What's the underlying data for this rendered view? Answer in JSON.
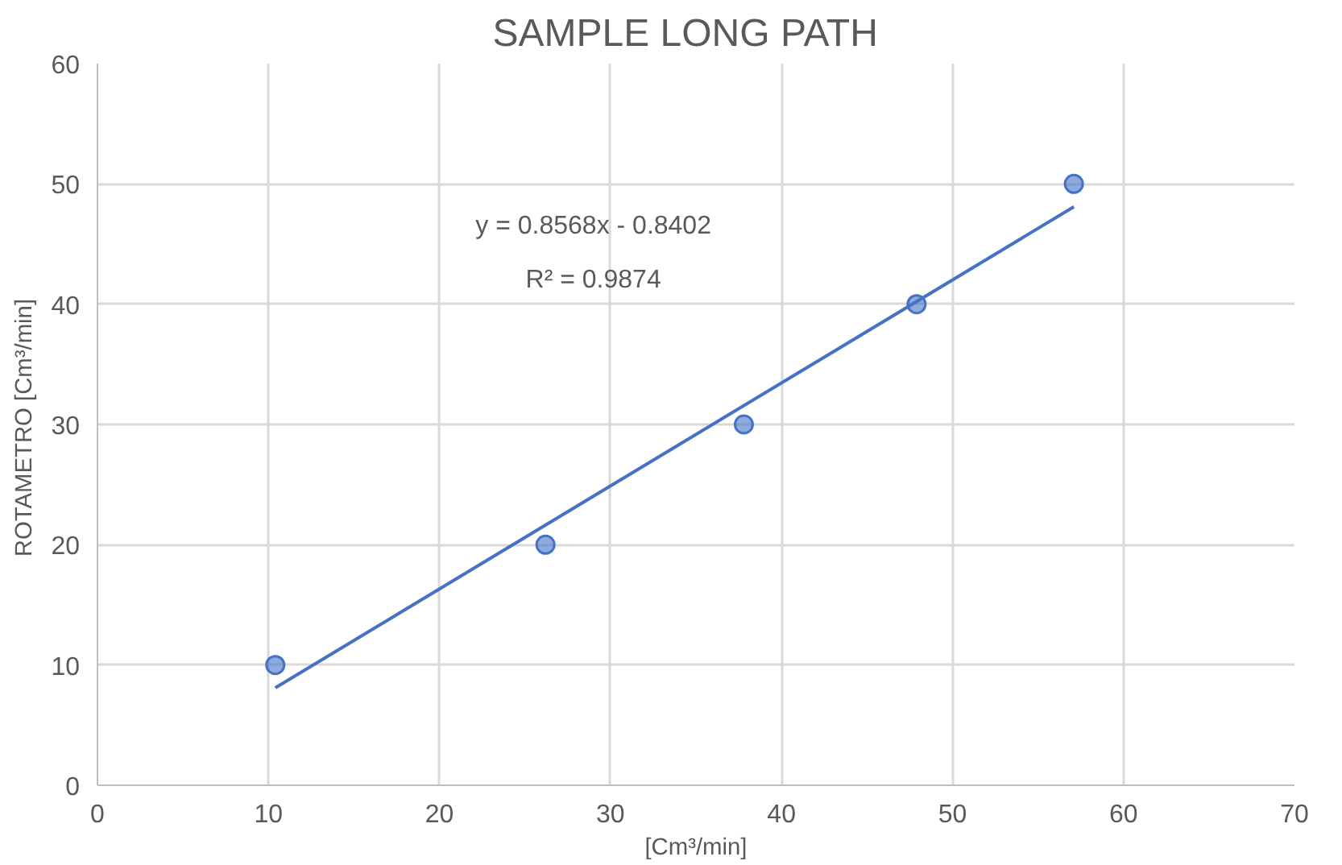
{
  "chart_data": {
    "type": "scatter",
    "title": "SAMPLE  LONG  PATH",
    "xlabel": "[Cm³/min]",
    "ylabel": "ROTAMETRO  [Cm³/min]",
    "annotations": [
      "y = 0.8568x - 0.8402",
      "R² = 0.9874"
    ],
    "series": [
      {
        "color": "#4472c4",
        "x": [
          10.4,
          26.2,
          37.8,
          47.9,
          57.1
        ],
        "values": [
          10,
          20,
          30,
          40,
          50
        ]
      },
      {
        "type": "line",
        "marker": "none",
        "color": "#4472c4",
        "x": [
          10.4,
          57.1
        ],
        "values": [
          8.1,
          48.1
        ]
      }
    ],
    "xlim": [
      0,
      70
    ],
    "ylim": [
      0,
      60
    ],
    "xticks": [
      0,
      10,
      20,
      30,
      40,
      50,
      60,
      70
    ],
    "yticks": [
      0,
      10,
      20,
      30,
      40,
      50,
      60
    ],
    "grid": true,
    "marker": "circle",
    "line_style": "solid"
  }
}
